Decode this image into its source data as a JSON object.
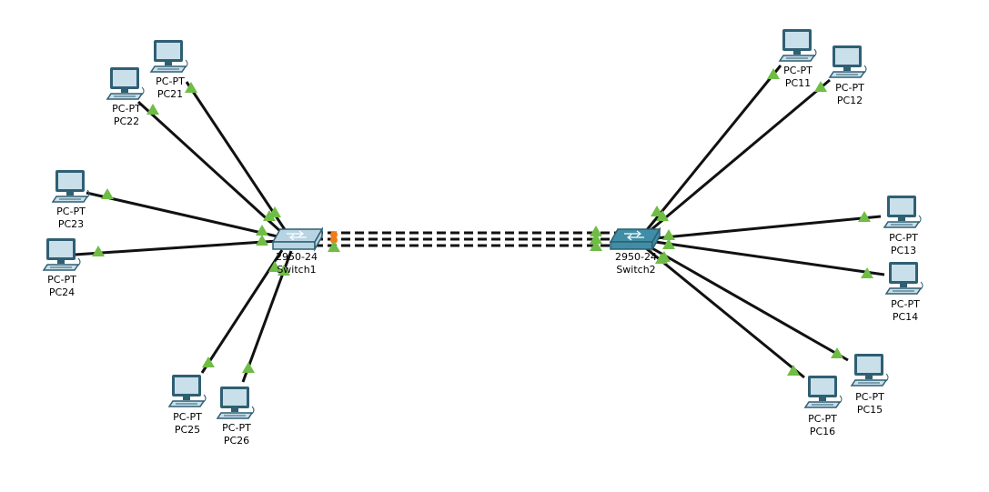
{
  "devices": [
    {
      "id": "pc21",
      "model": "PC-PT",
      "name": "PC21",
      "kind": "pc"
    },
    {
      "id": "pc22",
      "model": "PC-PT",
      "name": "PC22",
      "kind": "pc"
    },
    {
      "id": "pc23",
      "model": "PC-PT",
      "name": "PC23",
      "kind": "pc"
    },
    {
      "id": "pc24",
      "model": "PC-PT",
      "name": "PC24",
      "kind": "pc"
    },
    {
      "id": "pc25",
      "model": "PC-PT",
      "name": "PC25",
      "kind": "pc"
    },
    {
      "id": "pc26",
      "model": "PC-PT",
      "name": "PC26",
      "kind": "pc"
    },
    {
      "id": "pc11",
      "model": "PC-PT",
      "name": "PC11",
      "kind": "pc"
    },
    {
      "id": "pc12",
      "model": "PC-PT",
      "name": "PC12",
      "kind": "pc"
    },
    {
      "id": "pc13",
      "model": "PC-PT",
      "name": "PC13",
      "kind": "pc"
    },
    {
      "id": "pc14",
      "model": "PC-PT",
      "name": "PC14",
      "kind": "pc"
    },
    {
      "id": "pc15",
      "model": "PC-PT",
      "name": "PC15",
      "kind": "pc"
    },
    {
      "id": "pc16",
      "model": "PC-PT",
      "name": "PC16",
      "kind": "pc"
    },
    {
      "id": "switch1",
      "model": "2950-24",
      "name": "Switch1",
      "kind": "switch",
      "color": "#b8d4e2"
    },
    {
      "id": "switch2",
      "model": "2950-24",
      "name": "Switch2",
      "kind": "switch",
      "color": "#3f8ea6"
    }
  ],
  "links": [
    {
      "from": "switch1",
      "to": "pc21",
      "style": "solid",
      "status": [
        "up",
        "up"
      ]
    },
    {
      "from": "switch1",
      "to": "pc22",
      "style": "solid",
      "status": [
        "up",
        "up"
      ]
    },
    {
      "from": "switch1",
      "to": "pc23",
      "style": "solid",
      "status": [
        "up",
        "up"
      ]
    },
    {
      "from": "switch1",
      "to": "pc24",
      "style": "solid",
      "status": [
        "up",
        "up"
      ]
    },
    {
      "from": "switch1",
      "to": "pc25",
      "style": "solid",
      "status": [
        "up",
        "up"
      ]
    },
    {
      "from": "switch1",
      "to": "pc26",
      "style": "solid",
      "status": [
        "up",
        "up"
      ]
    },
    {
      "from": "switch2",
      "to": "pc11",
      "style": "solid",
      "status": [
        "up",
        "up"
      ]
    },
    {
      "from": "switch2",
      "to": "pc12",
      "style": "solid",
      "status": [
        "up",
        "up"
      ]
    },
    {
      "from": "switch2",
      "to": "pc13",
      "style": "solid",
      "status": [
        "up",
        "up"
      ]
    },
    {
      "from": "switch2",
      "to": "pc14",
      "style": "solid",
      "status": [
        "up",
        "up"
      ]
    },
    {
      "from": "switch2",
      "to": "pc15",
      "style": "solid",
      "status": [
        "up",
        "up"
      ]
    },
    {
      "from": "switch2",
      "to": "pc16",
      "style": "solid",
      "status": [
        "up",
        "up"
      ]
    },
    {
      "from": "switch1",
      "to": "switch2",
      "style": "dashed",
      "status": [
        "blocking",
        "up"
      ]
    },
    {
      "from": "switch1",
      "to": "switch2",
      "style": "dashed",
      "status": [
        "blocking",
        "up"
      ]
    },
    {
      "from": "switch1",
      "to": "switch2",
      "style": "dashed",
      "status": [
        "up",
        "up"
      ]
    }
  ],
  "colors": {
    "link": "#111111",
    "link_up": "#6fbd44",
    "link_blocking": "#f07d1a",
    "pc_body": "#c9dfe9",
    "pc_outline": "#2f5f73"
  }
}
